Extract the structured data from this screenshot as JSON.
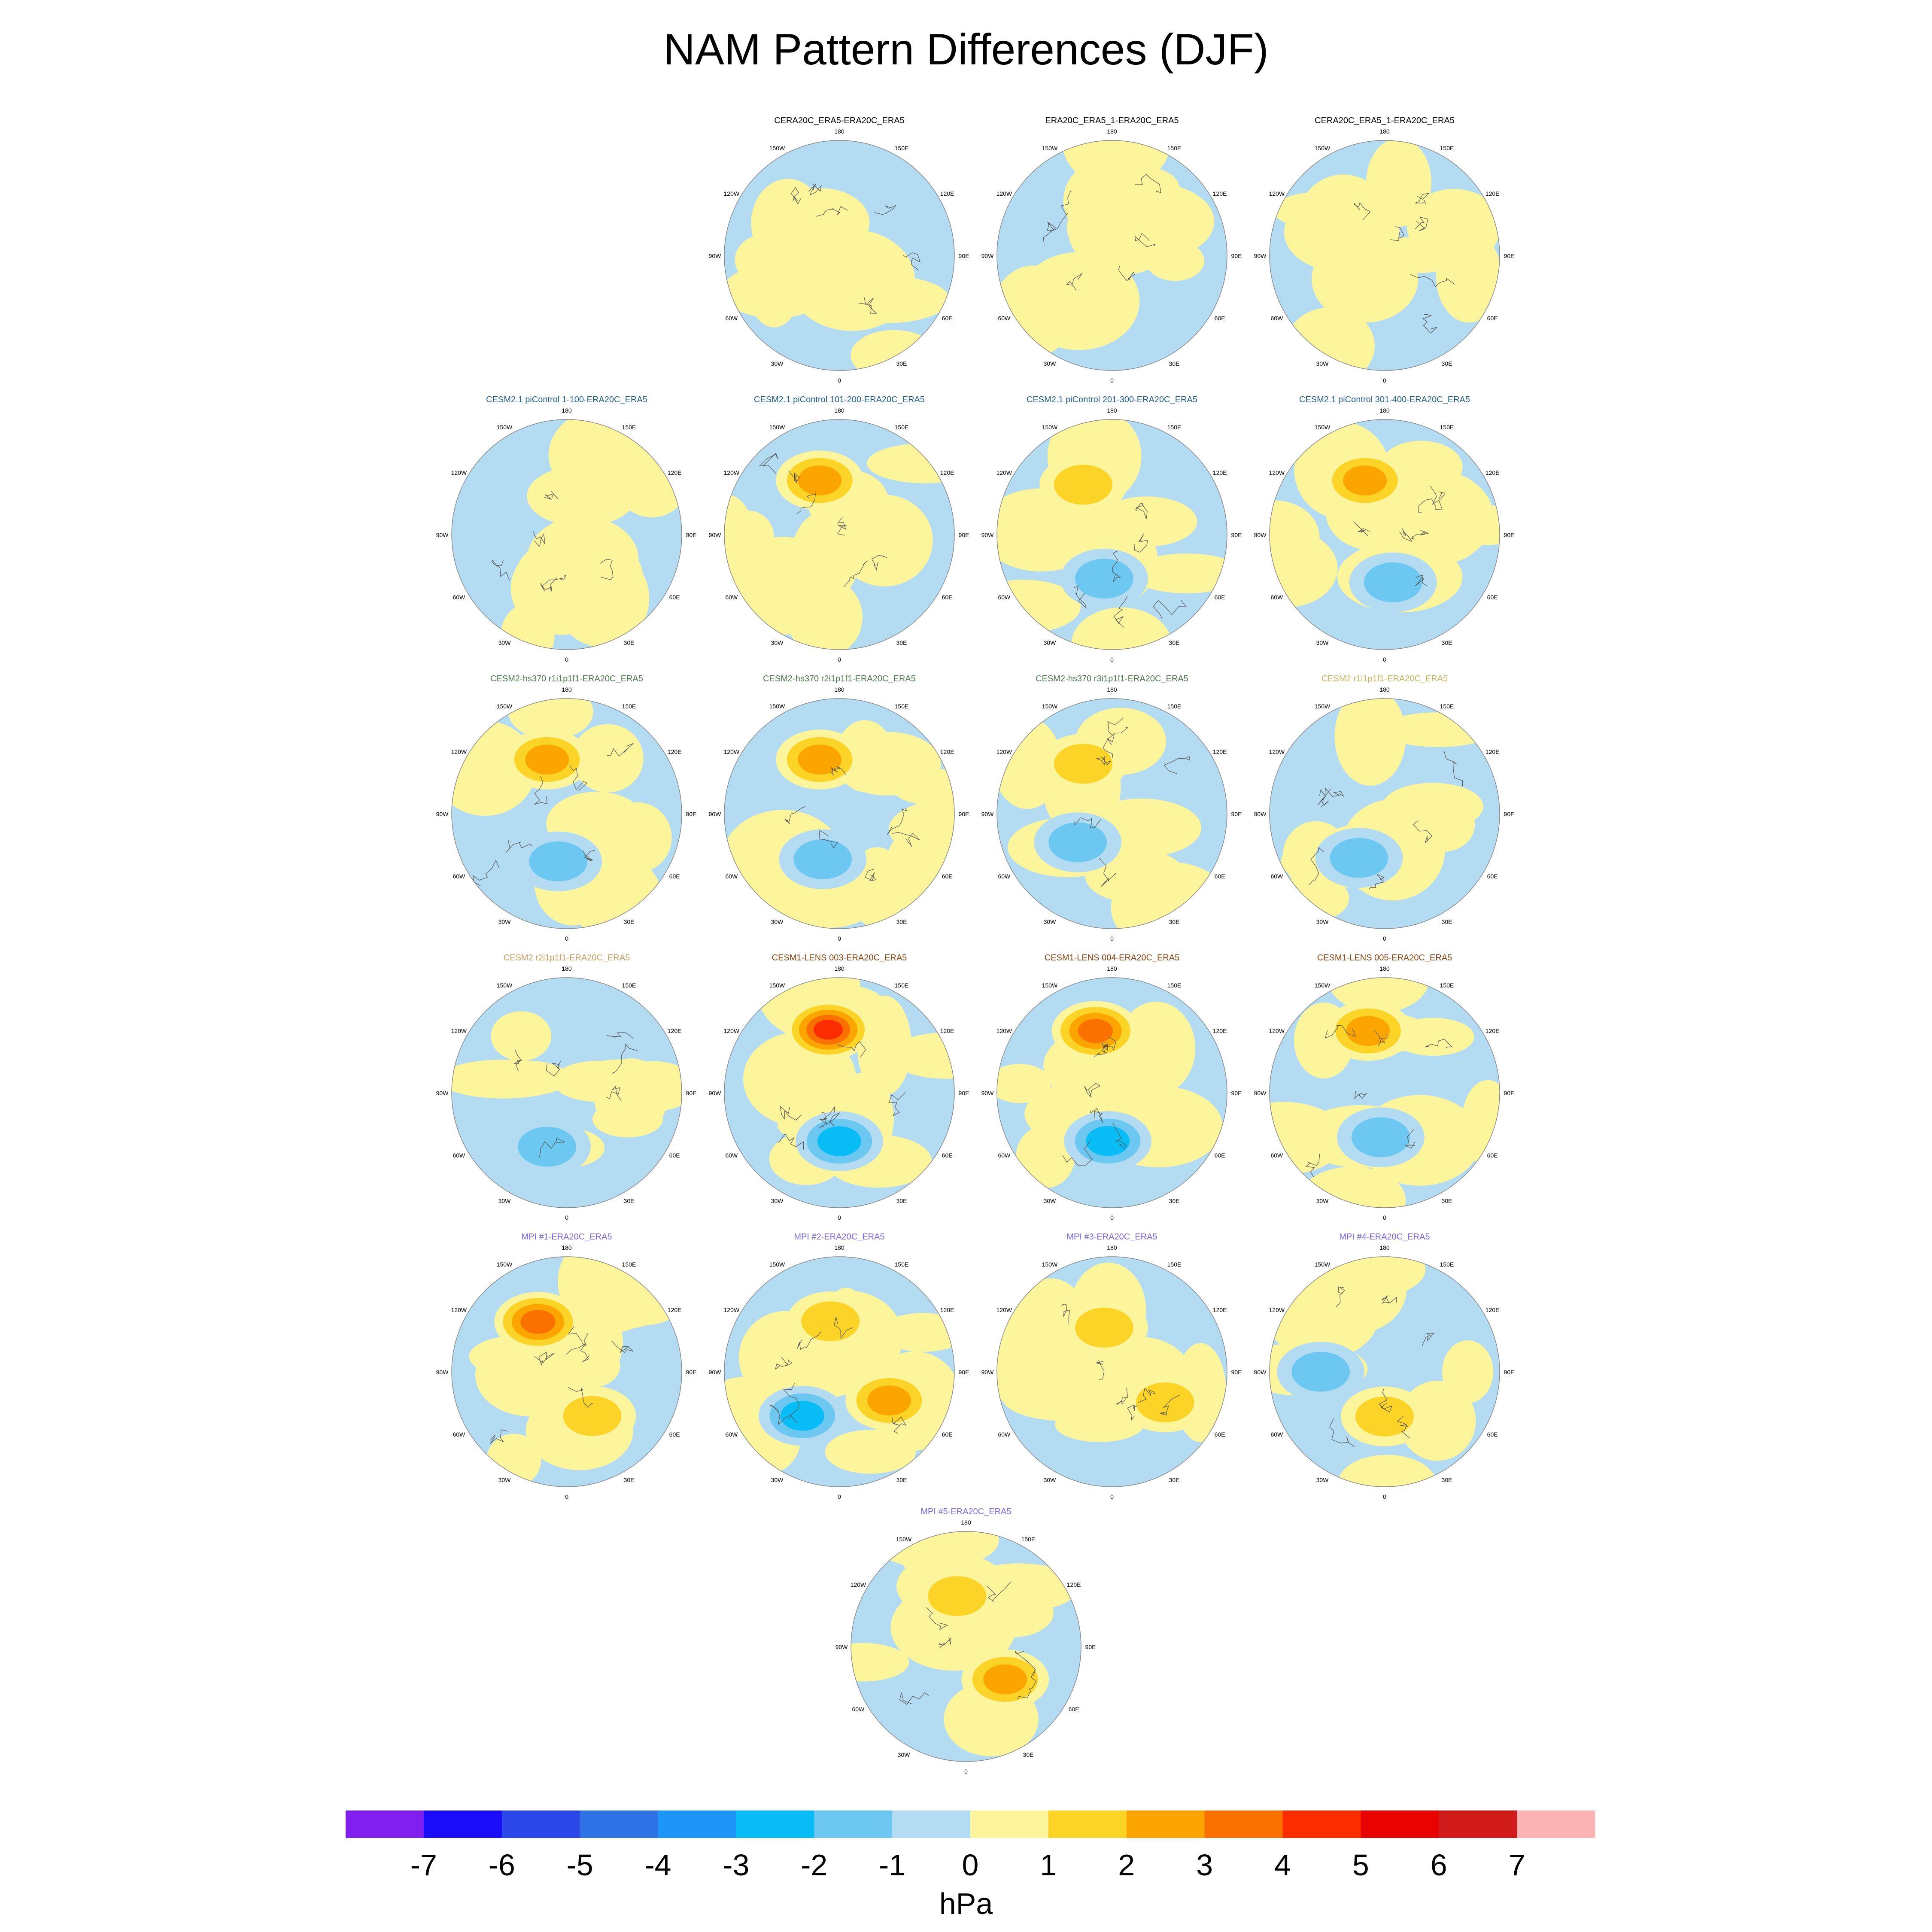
{
  "chart_data": {
    "type": "polar-contour-panels",
    "title": "NAM Pattern Differences (DJF)",
    "colorbar": {
      "label": "hPa",
      "levels": [
        -7,
        -6,
        -5,
        -4,
        -3,
        -2,
        -1,
        0,
        1,
        2,
        3,
        4,
        5,
        6,
        7
      ],
      "tick_labels": [
        "-7",
        "-6",
        "-5",
        "-4",
        "-3",
        "-2",
        "-1",
        "0",
        "1",
        "2",
        "3",
        "4",
        "5",
        "6",
        "7"
      ],
      "colors": [
        "#7f1ff0",
        "#1b0cfa",
        "#2c48e8",
        "#2f72e6",
        "#1e96f7",
        "#08bdf5",
        "#6dc8f1",
        "#b3dcf2",
        "#fdf59c",
        "#fbd427",
        "#fca500",
        "#fb7100",
        "#fb2c00",
        "#e80202",
        "#d21c1c",
        "#fbb3b3"
      ]
    },
    "axis_labels": {
      "lon": [
        "180",
        "150E",
        "120E",
        "90E",
        "60E",
        "30E",
        "0",
        "30W",
        "60W",
        "90W",
        "120W",
        "150W"
      ]
    },
    "panels": [
      {
        "row": 0,
        "col": 1,
        "label": "CERA20C_ERA5-ERA20C_ERA5",
        "color": "#000000",
        "patches": []
      },
      {
        "row": 0,
        "col": 2,
        "label": "ERA20C_ERA5_1-ERA20C_ERA5",
        "color": "#000000",
        "patches": [
          [
            -45,
            30,
            0.75
          ]
        ]
      },
      {
        "row": 0,
        "col": 3,
        "label": "CERA20C_ERA5_1-ERA20C_ERA5",
        "color": "#000000",
        "patches": [
          [
            -40,
            28,
            0.85
          ]
        ]
      },
      {
        "row": 1,
        "col": 0,
        "label": "CESM2.1 piControl 1-100-ERA20C_ERA5",
        "color": "#1f5f8b",
        "patches": []
      },
      {
        "row": 1,
        "col": 1,
        "label": "CESM2.1 piControl 101-200-ERA20C_ERA5",
        "color": "#1f5f8b",
        "patches": [
          [
            -160,
            45,
            2.4
          ]
        ]
      },
      {
        "row": 1,
        "col": 2,
        "label": "CESM2.1 piControl 201-300-ERA20C_ERA5",
        "color": "#1f5f8b",
        "patches": [
          [
            -150,
            45,
            1.6
          ],
          [
            -10,
            35,
            -1.3
          ]
        ]
      },
      {
        "row": 1,
        "col": 3,
        "label": "CESM2.1 piControl 301-400-ERA20C_ERA5",
        "color": "#1f5f8b",
        "patches": [
          [
            -160,
            45,
            2.6
          ],
          [
            10,
            38,
            -1.2
          ]
        ]
      },
      {
        "row": 2,
        "col": 0,
        "label": "CESM2-hs370 r1i1p1f1-ERA20C_ERA5",
        "color": "#4a7a4a",
        "patches": [
          [
            -160,
            45,
            2.5
          ],
          [
            -10,
            38,
            -1.5
          ]
        ]
      },
      {
        "row": 2,
        "col": 1,
        "label": "CESM2-hs370 r2i1p1f1-ERA20C_ERA5",
        "color": "#4a7a4a",
        "patches": [
          [
            -160,
            45,
            2.3
          ],
          [
            -20,
            38,
            -1.6
          ]
        ]
      },
      {
        "row": 2,
        "col": 2,
        "label": "CESM2-hs370 r3i1p1f1-ERA20C_ERA5",
        "color": "#4a7a4a",
        "patches": [
          [
            -150,
            45,
            1.8
          ],
          [
            -50,
            35,
            -1.1
          ]
        ]
      },
      {
        "row": 2,
        "col": 3,
        "label": "CESM2 r1i1p1f1-ERA20C_ERA5",
        "color": "#c8b45a",
        "patches": [
          [
            -30,
            40,
            -1.6
          ]
        ]
      },
      {
        "row": 3,
        "col": 0,
        "label": "CESM2 r2i1p1f1-ERA20C_ERA5",
        "color": "#c8a060",
        "patches": [
          [
            -20,
            45,
            -1.4
          ]
        ]
      },
      {
        "row": 3,
        "col": 1,
        "label": "CESM1-LENS 003-ERA20C_ERA5",
        "color": "#8b4513",
        "patches": [
          [
            -170,
            50,
            4.5
          ],
          [
            0,
            38,
            -2.6
          ]
        ]
      },
      {
        "row": 3,
        "col": 2,
        "label": "CESM1-LENS 004-ERA20C_ERA5",
        "color": "#8b4513",
        "patches": [
          [
            -165,
            50,
            3.5
          ],
          [
            -5,
            38,
            -2.2
          ]
        ]
      },
      {
        "row": 3,
        "col": 3,
        "label": "CESM1-LENS 005-ERA20C_ERA5",
        "color": "#8b4513",
        "patches": [
          [
            -165,
            50,
            2.8
          ],
          [
            -5,
            35,
            -1.8
          ]
        ]
      },
      {
        "row": 4,
        "col": 0,
        "label": "MPI #1-ERA20C_ERA5",
        "color": "#7b68ee",
        "patches": [
          [
            -150,
            45,
            3.5
          ],
          [
            30,
            40,
            1.6
          ]
        ]
      },
      {
        "row": 4,
        "col": 1,
        "label": "MPI #2-ERA20C_ERA5",
        "color": "#7b68ee",
        "patches": [
          [
            -170,
            40,
            1.8
          ],
          [
            -40,
            45,
            -2.4
          ],
          [
            60,
            45,
            2.5
          ]
        ]
      },
      {
        "row": 4,
        "col": 2,
        "label": "MPI #3-ERA20C_ERA5",
        "color": "#7b68ee",
        "patches": [
          [
            -170,
            35,
            1.2
          ],
          [
            60,
            48,
            1.3
          ]
        ]
      },
      {
        "row": 4,
        "col": 3,
        "label": "MPI #4-ERA20C_ERA5",
        "color": "#7b68ee",
        "patches": [
          [
            -90,
            50,
            -1.5
          ],
          [
            0,
            35,
            1.3
          ]
        ]
      },
      {
        "row": 5,
        "col": 2,
        "label": "MPI #5-ERA20C_ERA5",
        "color": "#7b68ee",
        "patches": [
          [
            -170,
            40,
            1.8
          ],
          [
            50,
            40,
            2.2
          ]
        ]
      }
    ]
  }
}
